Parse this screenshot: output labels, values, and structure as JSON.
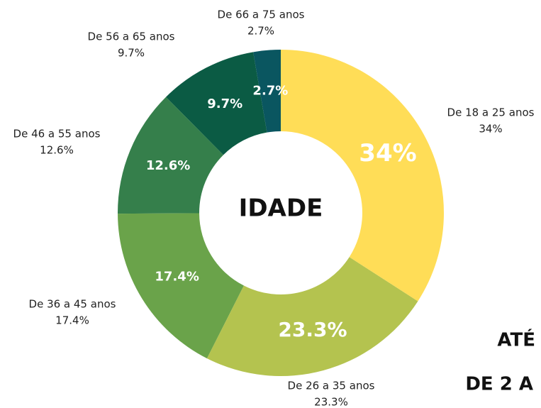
{
  "chart_data": {
    "type": "donut",
    "center_label": "IDADE",
    "categories": [
      "De 18 a 25 anos",
      "De 26 a 35 anos",
      "De 36 a 45 anos",
      "De 46 a 55 anos",
      "De 56 a 65 anos",
      "De 66 a 75 anos"
    ],
    "values": [
      34,
      23.3,
      17.4,
      12.6,
      9.7,
      2.7
    ],
    "value_labels": [
      "34%",
      "23.3%",
      "17.4%",
      "12.6%",
      "9.7%",
      "2.7%"
    ],
    "colors": [
      "#FFDD57",
      "#B4C34F",
      "#6AA34A",
      "#357F4B",
      "#0B5B44",
      "#0A5660"
    ],
    "annotations": [
      "ATÉ",
      "DE 2 A"
    ]
  }
}
